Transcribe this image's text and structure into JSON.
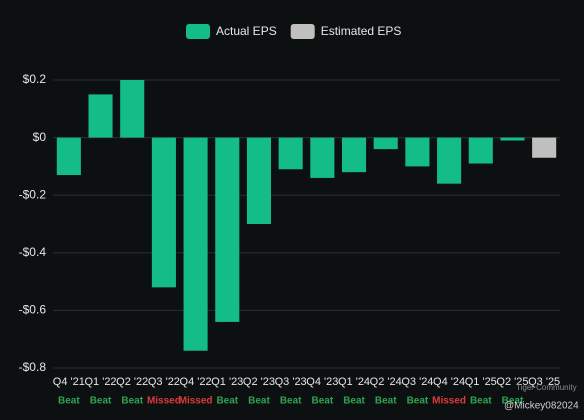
{
  "chart_data": {
    "type": "bar",
    "categories": [
      "Q4 '21",
      "Q1 '22",
      "Q2 '22",
      "Q3 '22",
      "Q4 '22",
      "Q1 '23",
      "Q2 '23",
      "Q3 '23",
      "Q4 '23",
      "Q1 '24",
      "Q2 '24",
      "Q3 '24",
      "Q4 '24",
      "Q1 '25",
      "Q2 '25",
      "Q3 '25"
    ],
    "series": [
      {
        "name": "Actual EPS",
        "color": "#13bd85",
        "values": [
          -0.13,
          0.15,
          0.2,
          -0.52,
          -0.74,
          -0.64,
          -0.3,
          -0.11,
          -0.14,
          -0.12,
          -0.04,
          -0.1,
          -0.16,
          -0.09,
          -0.01,
          null
        ]
      },
      {
        "name": "Estimated EPS",
        "color": "#bfbfbf",
        "values": [
          null,
          null,
          null,
          null,
          null,
          null,
          null,
          null,
          null,
          null,
          null,
          null,
          null,
          null,
          null,
          -0.07
        ]
      }
    ],
    "results": [
      "Beat",
      "Beat",
      "Beat",
      "Missed",
      "Missed",
      "Beat",
      "Beat",
      "Beat",
      "Beat",
      "Beat",
      "Beat",
      "Beat",
      "Missed",
      "Beat",
      "Beat",
      null
    ],
    "result_colors": {
      "Beat": "#2ea44f",
      "Missed": "#e0393a"
    },
    "ylim": [
      -0.8,
      0.2
    ],
    "yticks": [
      {
        "value": 0.2,
        "label": "$0.2"
      },
      {
        "value": 0,
        "label": "$0"
      },
      {
        "value": -0.2,
        "label": "-$0.2"
      },
      {
        "value": -0.4,
        "label": "-$0.4"
      },
      {
        "value": -0.6,
        "label": "-$0.6"
      },
      {
        "value": -0.8,
        "label": "-$0.8"
      }
    ],
    "grid": true,
    "legend": "top",
    "watermark": [
      "Tiger Community",
      "@Mickey082024"
    ]
  }
}
